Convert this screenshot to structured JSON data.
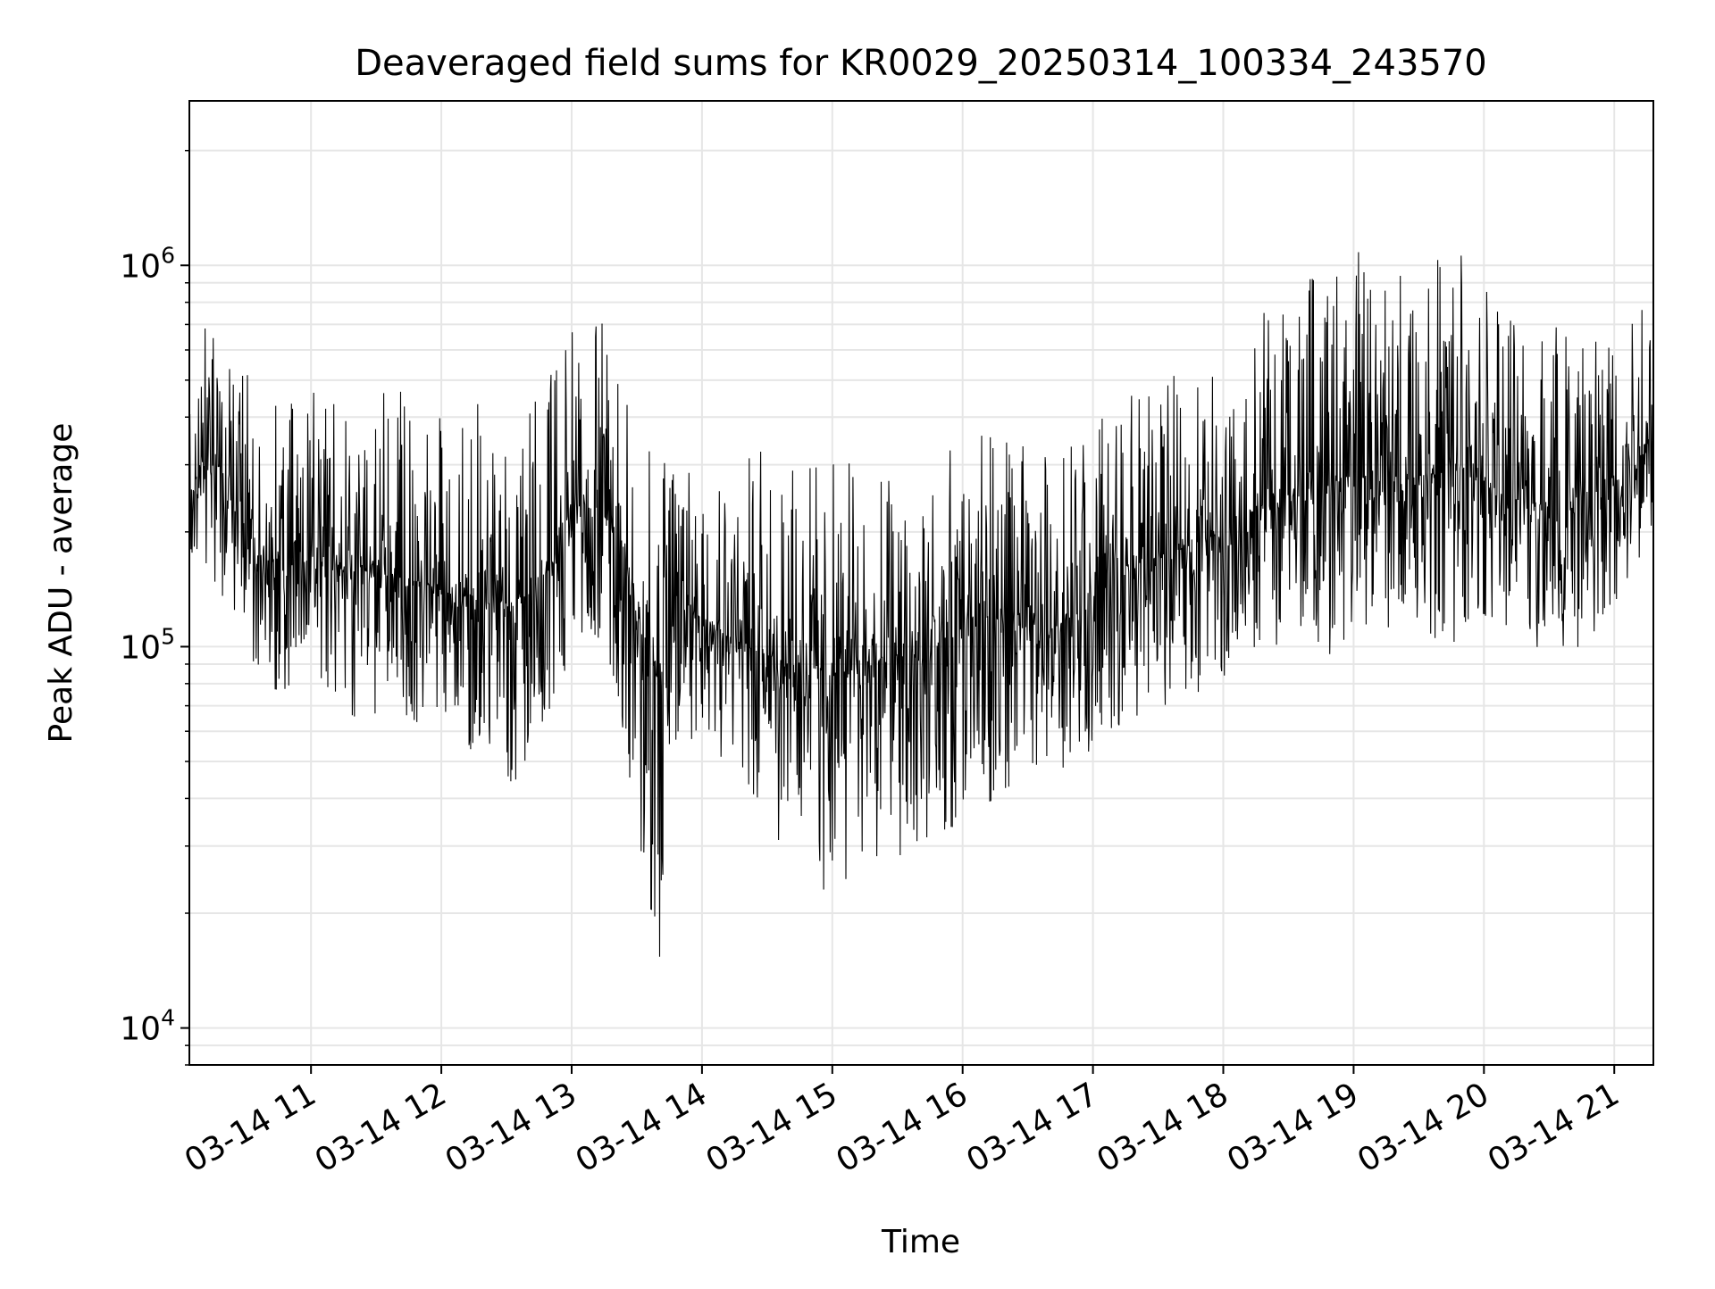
{
  "chart_data": {
    "type": "line",
    "title": "Deaveraged field sums for KR0029_20250314_100334_243570",
    "xlabel": "Time",
    "ylabel": "Peak ADU - average",
    "xlim": [
      "2025-03-14T10:04:00",
      "2025-03-14T21:18:00"
    ],
    "ylim": [
      8000,
      2700000
    ],
    "yscale": "log",
    "grid": true,
    "x_ticks": [
      {
        "value": "2025-03-14T11:00:00",
        "label": "03-14 11"
      },
      {
        "value": "2025-03-14T12:00:00",
        "label": "03-14 12"
      },
      {
        "value": "2025-03-14T13:00:00",
        "label": "03-14 13"
      },
      {
        "value": "2025-03-14T14:00:00",
        "label": "03-14 14"
      },
      {
        "value": "2025-03-14T15:00:00",
        "label": "03-14 15"
      },
      {
        "value": "2025-03-14T16:00:00",
        "label": "03-14 16"
      },
      {
        "value": "2025-03-14T17:00:00",
        "label": "03-14 17"
      },
      {
        "value": "2025-03-14T18:00:00",
        "label": "03-14 18"
      },
      {
        "value": "2025-03-14T19:00:00",
        "label": "03-14 19"
      },
      {
        "value": "2025-03-14T20:00:00",
        "label": "03-14 20"
      },
      {
        "value": "2025-03-14T21:00:00",
        "label": "03-14 21"
      }
    ],
    "y_ticks": [
      {
        "value": 10000,
        "base": "10",
        "exp": "4"
      },
      {
        "value": 100000,
        "base": "10",
        "exp": "5"
      },
      {
        "value": 1000000,
        "base": "10",
        "exp": "6"
      }
    ],
    "series": [
      {
        "color": "#000000",
        "x": [
          "2025-03-14T10:04:00",
          "2025-03-14T10:10:00",
          "2025-03-14T10:20:00",
          "2025-03-14T10:30:00",
          "2025-03-14T10:40:00",
          "2025-03-14T10:50:00",
          "2025-03-14T11:00:00",
          "2025-03-14T11:10:00",
          "2025-03-14T11:20:00",
          "2025-03-14T11:30:00",
          "2025-03-14T11:40:00",
          "2025-03-14T11:50:00",
          "2025-03-14T12:00:00",
          "2025-03-14T12:10:00",
          "2025-03-14T12:20:00",
          "2025-03-14T12:30:00",
          "2025-03-14T12:40:00",
          "2025-03-14T12:50:00",
          "2025-03-14T13:00:00",
          "2025-03-14T13:10:00",
          "2025-03-14T13:20:00",
          "2025-03-14T13:30:00",
          "2025-03-14T13:40:00",
          "2025-03-14T13:50:00",
          "2025-03-14T14:00:00",
          "2025-03-14T14:10:00",
          "2025-03-14T14:20:00",
          "2025-03-14T14:30:00",
          "2025-03-14T14:40:00",
          "2025-03-14T14:50:00",
          "2025-03-14T15:00:00",
          "2025-03-14T15:10:00",
          "2025-03-14T15:20:00",
          "2025-03-14T15:30:00",
          "2025-03-14T15:40:00",
          "2025-03-14T15:50:00",
          "2025-03-14T16:00:00",
          "2025-03-14T16:10:00",
          "2025-03-14T16:20:00",
          "2025-03-14T16:30:00",
          "2025-03-14T16:40:00",
          "2025-03-14T16:50:00",
          "2025-03-14T17:00:00",
          "2025-03-14T17:10:00",
          "2025-03-14T17:20:00",
          "2025-03-14T17:30:00",
          "2025-03-14T17:40:00",
          "2025-03-14T17:50:00",
          "2025-03-14T18:00:00",
          "2025-03-14T18:10:00",
          "2025-03-14T18:20:00",
          "2025-03-14T18:30:00",
          "2025-03-14T18:40:00",
          "2025-03-14T18:50:00",
          "2025-03-14T19:00:00",
          "2025-03-14T19:10:00",
          "2025-03-14T19:20:00",
          "2025-03-14T19:30:00",
          "2025-03-14T19:40:00",
          "2025-03-14T19:50:00",
          "2025-03-14T20:00:00",
          "2025-03-14T20:10:00",
          "2025-03-14T20:20:00",
          "2025-03-14T20:30:00",
          "2025-03-14T20:40:00",
          "2025-03-14T20:50:00",
          "2025-03-14T21:00:00",
          "2025-03-14T21:10:00",
          "2025-03-14T21:18:00"
        ],
        "y": [
          250000,
          300000,
          260000,
          200000,
          170000,
          160000,
          170000,
          165000,
          160000,
          155000,
          150000,
          148000,
          140000,
          135000,
          130000,
          128000,
          135000,
          160000,
          230000,
          240000,
          200000,
          120000,
          80000,
          130000,
          120000,
          110000,
          100000,
          95000,
          90000,
          88000,
          85000,
          88000,
          90000,
          95000,
          92000,
          100000,
          110000,
          120000,
          115000,
          112000,
          110000,
          120000,
          140000,
          150000,
          160000,
          170000,
          180000,
          190000,
          200000,
          220000,
          240000,
          250000,
          260000,
          270000,
          280000,
          275000,
          270000,
          280000,
          285000,
          290000,
          270000,
          250000,
          240000,
          230000,
          235000,
          260000,
          280000,
          330000,
          350000
        ],
        "spread_low": [
          0.6,
          0.55,
          0.45,
          0.45,
          0.45,
          0.45,
          0.5,
          0.45,
          0.4,
          0.4,
          0.45,
          0.4,
          0.45,
          0.4,
          0.35,
          0.3,
          0.35,
          0.4,
          0.4,
          0.45,
          0.4,
          0.25,
          0.15,
          0.4,
          0.5,
          0.45,
          0.4,
          0.35,
          0.3,
          0.3,
          0.2,
          0.3,
          0.3,
          0.3,
          0.3,
          0.3,
          0.3,
          0.3,
          0.35,
          0.35,
          0.4,
          0.35,
          0.4,
          0.4,
          0.4,
          0.4,
          0.4,
          0.4,
          0.4,
          0.45,
          0.4,
          0.4,
          0.4,
          0.35,
          0.35,
          0.4,
          0.4,
          0.4,
          0.35,
          0.35,
          0.4,
          0.4,
          0.4,
          0.4,
          0.4,
          0.4,
          0.45,
          0.5,
          0.55
        ],
        "spread_high": [
          2.2,
          2.3,
          2.5,
          2.6,
          2.7,
          2.8,
          3.0,
          3.2,
          3.0,
          3.2,
          3.4,
          3.3,
          3.2,
          3.3,
          3.4,
          3.5,
          3.6,
          3.4,
          3.2,
          3.3,
          3.0,
          3.2,
          3.6,
          3.3,
          3.2,
          3.2,
          3.4,
          3.5,
          3.6,
          3.7,
          3.7,
          3.5,
          3.4,
          3.3,
          3.3,
          3.3,
          3.2,
          3.1,
          3.1,
          3.0,
          3.0,
          3.0,
          3.0,
          2.9,
          2.9,
          2.9,
          2.9,
          3.0,
          3.0,
          3.2,
          3.4,
          3.5,
          3.6,
          3.8,
          4.0,
          4.0,
          3.8,
          3.9,
          4.0,
          3.9,
          3.8,
          3.8,
          3.7,
          3.6,
          3.5,
          3.3,
          3.2,
          3.0,
          2.8
        ]
      }
    ]
  }
}
